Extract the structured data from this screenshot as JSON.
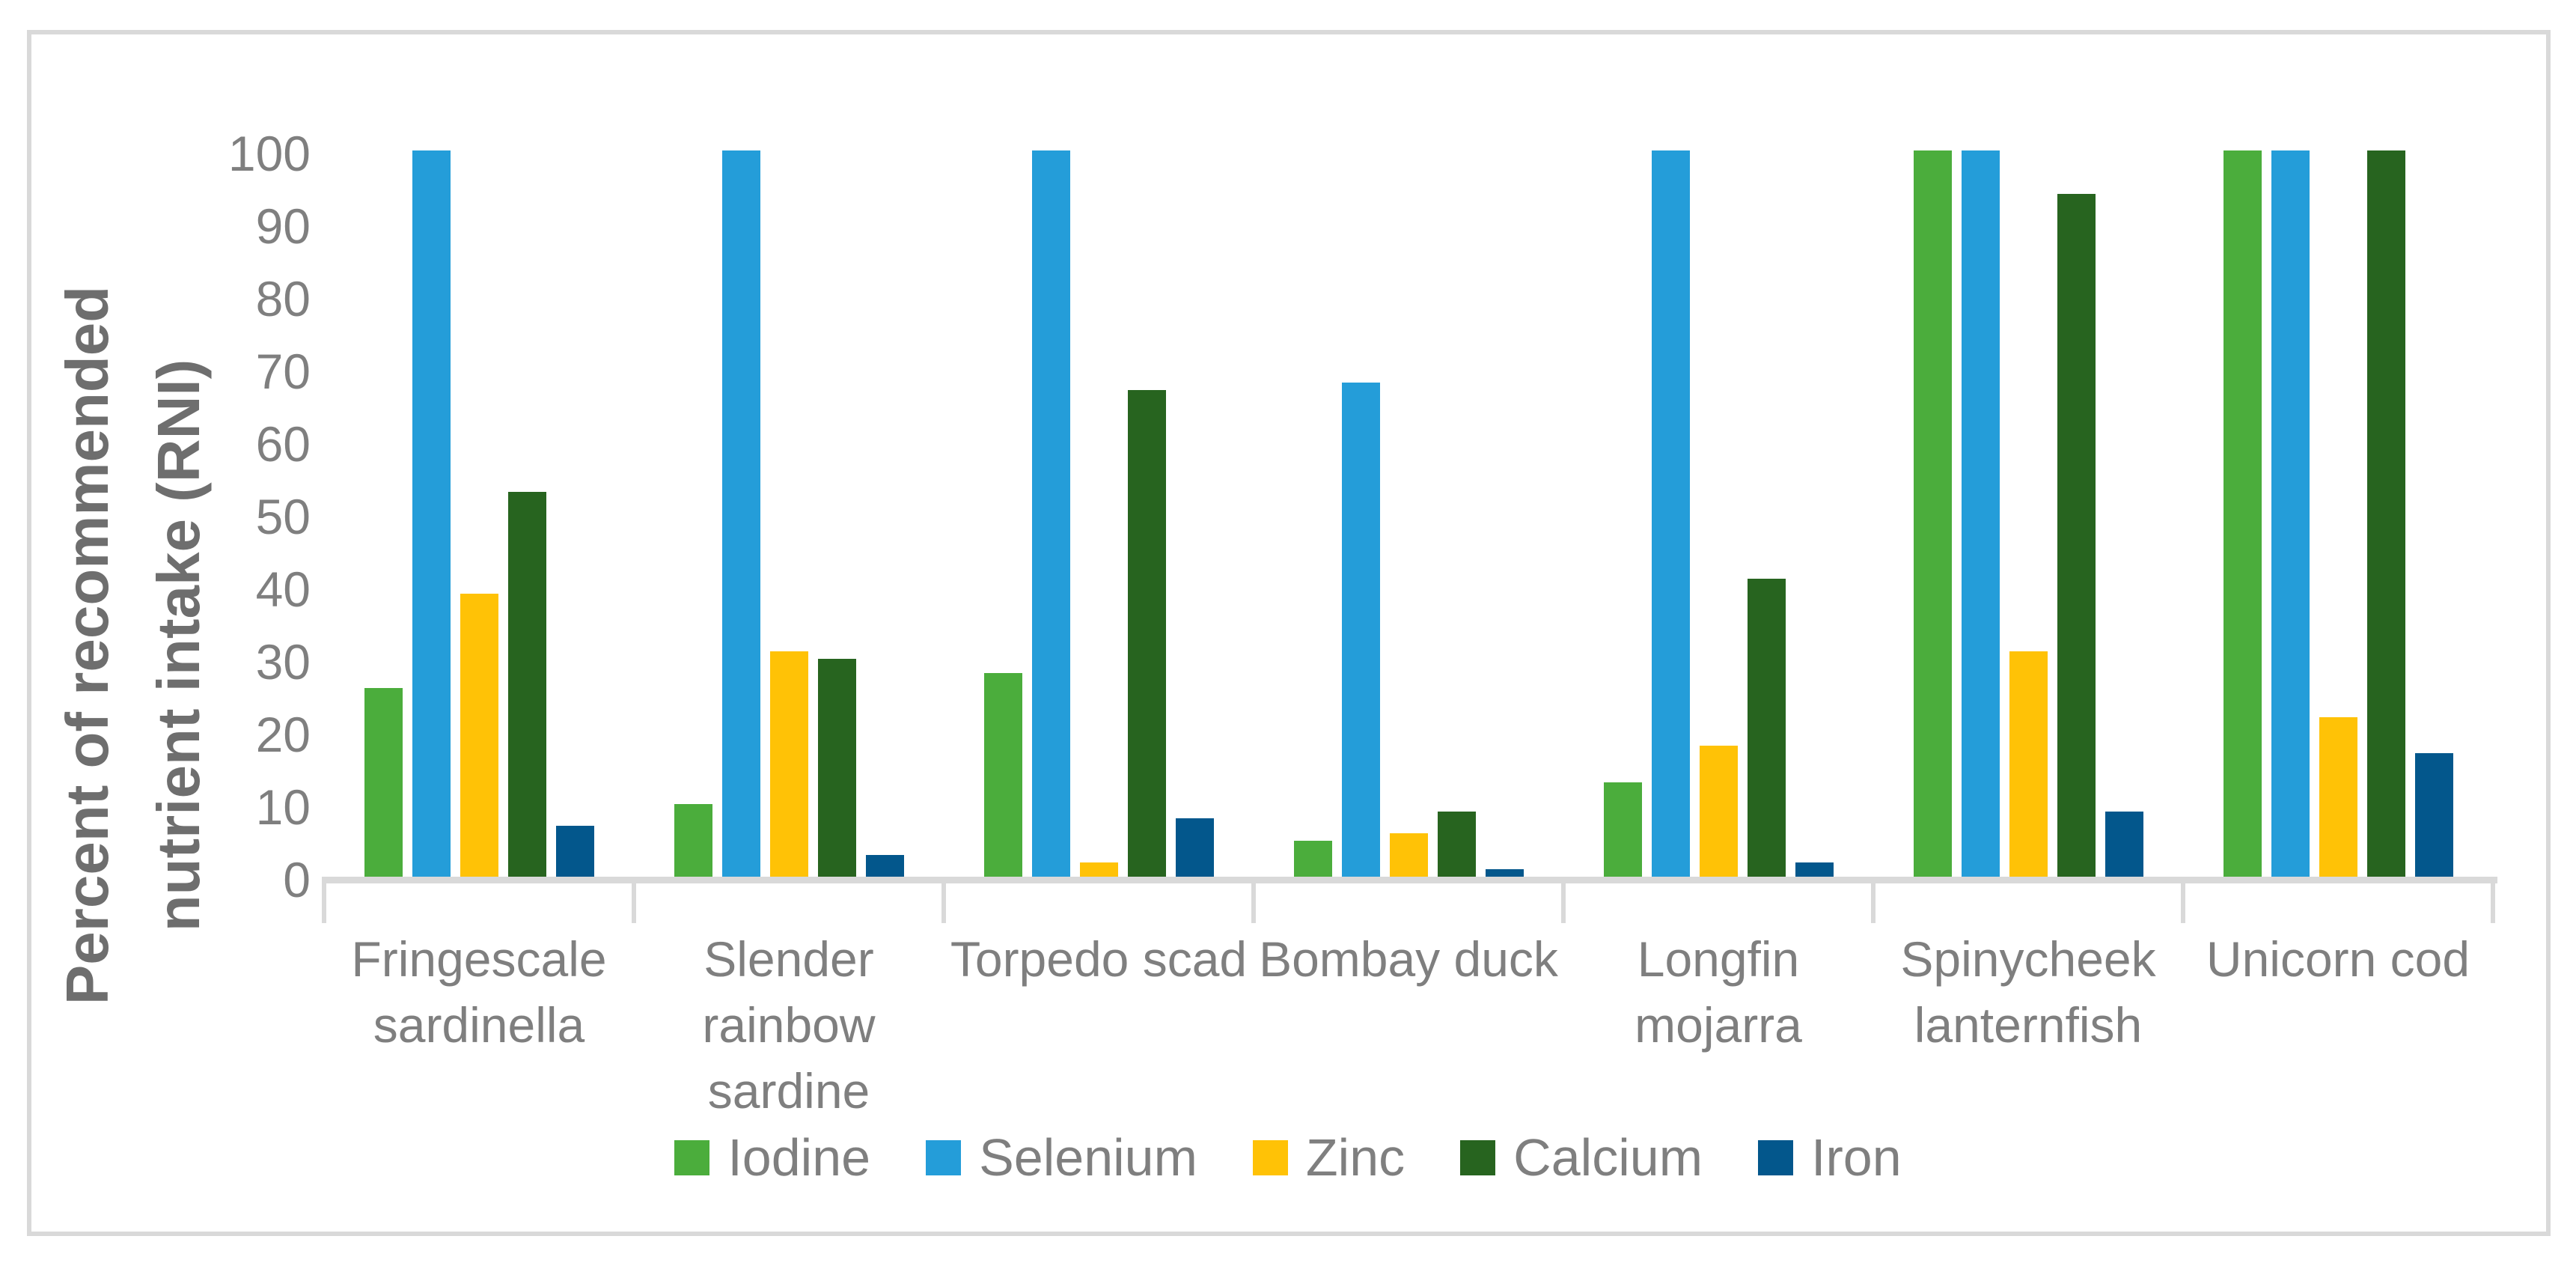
{
  "colors": {
    "background": "#FFFFFF",
    "border": "#D9D9D9",
    "axis_line": "#D9D9D9",
    "tick_text": "#7F7F7F",
    "axis_title_text": "#6E6E6E"
  },
  "chart_data": {
    "type": "bar",
    "title": "",
    "ylabel": "Percent of recommended nutrient intake (RNI)",
    "ylabel_lines": [
      "Percent of recommended",
      "nutrient intake (RNI)"
    ],
    "xlabel": "",
    "ylim": [
      0,
      100
    ],
    "y_tick_step": 10,
    "y_ticks": [
      0,
      10,
      20,
      30,
      40,
      50,
      60,
      70,
      80,
      90,
      100
    ],
    "gridlines": false,
    "legend_position": "bottom",
    "categories": [
      "Fringescale sardinella",
      "Slender rainbow sardine",
      "Torpedo scad",
      "Bombay duck",
      "Longfin mojarra",
      "Spinycheek lanternfish",
      "Unicorn cod"
    ],
    "category_label_lines": [
      [
        "Fringescale",
        "sardinella"
      ],
      [
        "Slender",
        "rainbow",
        "sardine"
      ],
      [
        "Torpedo scad"
      ],
      [
        "Bombay duck"
      ],
      [
        "Longfin",
        "mojarra"
      ],
      [
        "Spinycheek",
        "lanternfish"
      ],
      [
        "Unicorn cod"
      ]
    ],
    "series": [
      {
        "name": "Iodine",
        "color": "#4BAD3C",
        "values": [
          26,
          10,
          28,
          5,
          13,
          100,
          100
        ]
      },
      {
        "name": "Selenium",
        "color": "#249DD9",
        "values": [
          100,
          100,
          100,
          68,
          100,
          100,
          100
        ]
      },
      {
        "name": "Zinc",
        "color": "#FFC206",
        "values": [
          39,
          31,
          2,
          6,
          18,
          31,
          22
        ]
      },
      {
        "name": "Calcium",
        "color": "#27641F",
        "values": [
          53,
          30,
          67,
          9,
          41,
          94,
          100
        ]
      },
      {
        "name": "Iron",
        "color": "#03578C",
        "values": [
          7,
          3,
          8,
          1,
          2,
          9,
          17
        ]
      }
    ]
  }
}
